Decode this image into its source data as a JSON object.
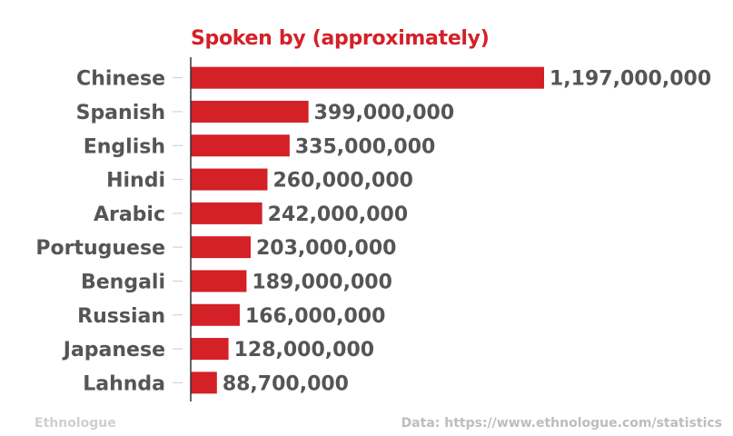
{
  "footer": {
    "source_logo_text": "Ethnologue",
    "source_note": "Data: https://www.ethnologue.com/statistics"
  },
  "chart_data": {
    "type": "bar",
    "orientation": "horizontal",
    "title": "Spoken by (approximately)",
    "categories": [
      "Chinese",
      "Spanish",
      "English",
      "Hindi",
      "Arabic",
      "Portuguese",
      "Bengali",
      "Russian",
      "Japanese",
      "Lahnda"
    ],
    "values": [
      1197000000,
      399000000,
      335000000,
      260000000,
      242000000,
      203000000,
      189000000,
      166000000,
      128000000,
      88700000
    ],
    "value_labels": [
      "1,197,000,000",
      "399,000,000",
      "335,000,000",
      "260,000,000",
      "242,000,000",
      "203,000,000",
      "189,000,000",
      "166,000,000",
      "128,000,000",
      "88,700,000"
    ],
    "xlabel": "",
    "ylabel": "",
    "xlim": [
      0,
      1197000000
    ],
    "grid": false,
    "legend": "none",
    "colors": {
      "bar": "#d42027",
      "label": "#555555",
      "axis": "#333333",
      "tick": "#cccccc"
    }
  }
}
